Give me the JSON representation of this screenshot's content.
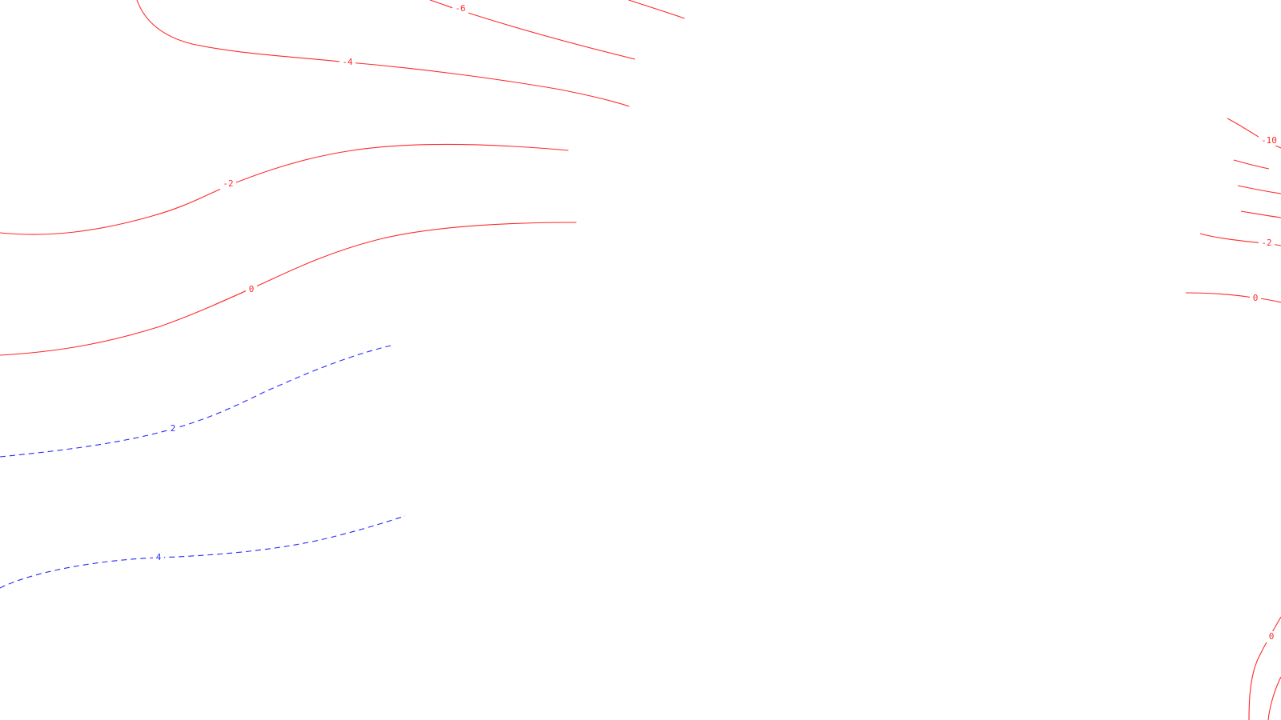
{
  "map": {
    "background_color": "#ffffff",
    "negative_contour_color": "#ff2a2a",
    "positive_contour_color": "#2a2aff",
    "contour_labels": [
      {
        "id": "label-minus-6",
        "text": "-6",
        "sign": "negative"
      },
      {
        "id": "label-minus-4",
        "text": "-4",
        "sign": "negative"
      },
      {
        "id": "label-minus-2-left",
        "text": "-2",
        "sign": "negative"
      },
      {
        "id": "label-zero-left",
        "text": "0",
        "sign": "negative"
      },
      {
        "id": "label-plus-2",
        "text": "2",
        "sign": "positive"
      },
      {
        "id": "label-plus-4",
        "text": "4",
        "sign": "positive"
      },
      {
        "id": "label-minus-10-right",
        "text": "-10",
        "sign": "negative"
      },
      {
        "id": "label-minus-2-right",
        "text": "-2",
        "sign": "negative"
      },
      {
        "id": "label-zero-right",
        "text": "0",
        "sign": "negative"
      },
      {
        "id": "label-zero-bottom-right",
        "text": "0",
        "sign": "negative"
      }
    ]
  }
}
